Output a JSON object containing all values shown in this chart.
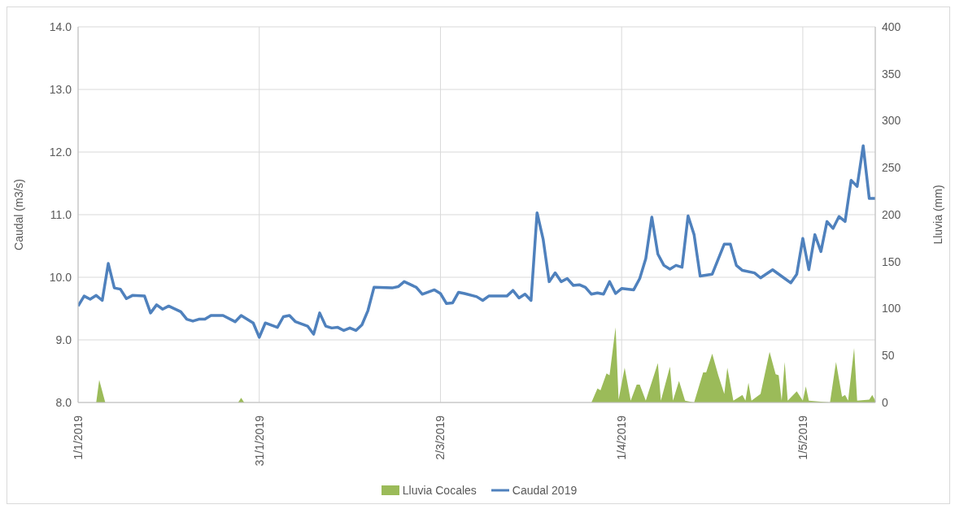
{
  "chart_data": {
    "type": "line",
    "ylabel": "Caudal (m3/s)",
    "y2label": "Lluvia (mm)",
    "xlim": [
      "2019-01-01",
      "2019-05-13"
    ],
    "xticks": [
      {
        "value": "2019-01-01",
        "label": "1/1/2019"
      },
      {
        "value": "2019-01-31",
        "label": "31/1/2019"
      },
      {
        "value": "2019-03-02",
        "label": "2/3/2019"
      },
      {
        "value": "2019-04-01",
        "label": "1/4/2019"
      },
      {
        "value": "2019-05-01",
        "label": "1/5/2019"
      }
    ],
    "ylim": [
      8,
      14
    ],
    "yticks": [
      {
        "value": 8,
        "label": "8.0"
      },
      {
        "value": 9,
        "label": "9.0"
      },
      {
        "value": 10,
        "label": "10.0"
      },
      {
        "value": 11,
        "label": "11.0"
      },
      {
        "value": 12,
        "label": "12.0"
      },
      {
        "value": 13,
        "label": "13.0"
      },
      {
        "value": 14,
        "label": "14.0"
      }
    ],
    "y2lim": [
      0,
      400
    ],
    "y2ticks": [
      0,
      50,
      100,
      150,
      200,
      250,
      300,
      350,
      400
    ],
    "grid": true,
    "legend": "bottom",
    "series": [
      {
        "name": "Lluvia Cocales",
        "type": "area",
        "axis": "y2",
        "color": "#9bbb59",
        "x": [
          "2019-01-01",
          "2019-01-04",
          "2019-01-04T12:00",
          "2019-01-05T12:00",
          "2019-01-27T12:00",
          "2019-01-28",
          "2019-01-28T12:00",
          "2019-03-27",
          "2019-03-28",
          "2019-03-28T12:00",
          "2019-03-29T12:00",
          "2019-03-30",
          "2019-03-31",
          "2019-03-31T12:00",
          "2019-04-01T12:00",
          "2019-04-02T12:00",
          "2019-04-03T12:00",
          "2019-04-04",
          "2019-04-05",
          "2019-04-07",
          "2019-04-07T12:00",
          "2019-04-09",
          "2019-04-09T12:00",
          "2019-04-10T12:00",
          "2019-04-11T12:00",
          "2019-04-13",
          "2019-04-14T12:00",
          "2019-04-15",
          "2019-04-16",
          "2019-04-17",
          "2019-04-18",
          "2019-04-18T12:00",
          "2019-04-19T12:00",
          "2019-04-21",
          "2019-04-21T12:00",
          "2019-04-22",
          "2019-04-22T12:00",
          "2019-04-24",
          "2019-04-25T12:00",
          "2019-04-26T12:00",
          "2019-04-27",
          "2019-04-27T12:00",
          "2019-04-28",
          "2019-04-28T12:00",
          "2019-04-30",
          "2019-05-01",
          "2019-05-01T12:00",
          "2019-05-02",
          "2019-05-05T12:00",
          "2019-05-06T12:00",
          "2019-05-07T12:00",
          "2019-05-08",
          "2019-05-08T12:00",
          "2019-05-09T12:00",
          "2019-05-10",
          "2019-05-12",
          "2019-05-12T12:00",
          "2019-05-13"
        ],
        "values": [
          0,
          0,
          24,
          0,
          0,
          5,
          0,
          0,
          15,
          13,
          31,
          29,
          80,
          3,
          37,
          2,
          19,
          19,
          2,
          42,
          2,
          38,
          2,
          23,
          2,
          0,
          32,
          32,
          52,
          29,
          9,
          37,
          2,
          8,
          2,
          21,
          2,
          9,
          54,
          30,
          29,
          2,
          43,
          2,
          12,
          2,
          17,
          2,
          0,
          43,
          6,
          8,
          2,
          58,
          2,
          3,
          8,
          2
        ]
      },
      {
        "name": "Caudal 2019",
        "axis": "y",
        "color": "#4f81bd",
        "x": [
          "2019-01-01",
          "2019-01-02",
          "2019-01-03",
          "2019-01-04",
          "2019-01-05",
          "2019-01-06",
          "2019-01-07",
          "2019-01-08",
          "2019-01-09",
          "2019-01-10",
          "2019-01-12",
          "2019-01-13",
          "2019-01-14",
          "2019-01-15",
          "2019-01-16",
          "2019-01-18",
          "2019-01-19",
          "2019-01-20",
          "2019-01-21",
          "2019-01-22",
          "2019-01-23",
          "2019-01-25",
          "2019-01-27",
          "2019-01-28",
          "2019-01-30",
          "2019-01-31",
          "2019-02-01",
          "2019-02-03",
          "2019-02-04",
          "2019-02-05",
          "2019-02-06",
          "2019-02-08",
          "2019-02-09",
          "2019-02-10",
          "2019-02-11",
          "2019-02-12",
          "2019-02-13",
          "2019-02-14",
          "2019-02-15",
          "2019-02-16",
          "2019-02-17",
          "2019-02-18",
          "2019-02-19",
          "2019-02-22",
          "2019-02-23",
          "2019-02-24",
          "2019-02-26",
          "2019-02-27",
          "2019-03-01",
          "2019-03-02",
          "2019-03-03",
          "2019-03-04",
          "2019-03-05",
          "2019-03-06",
          "2019-03-08",
          "2019-03-09",
          "2019-03-10",
          "2019-03-13",
          "2019-03-14",
          "2019-03-15",
          "2019-03-16",
          "2019-03-17",
          "2019-03-18",
          "2019-03-19",
          "2019-03-20",
          "2019-03-21",
          "2019-03-22",
          "2019-03-23",
          "2019-03-24",
          "2019-03-25",
          "2019-03-26",
          "2019-03-27",
          "2019-03-28",
          "2019-03-29",
          "2019-03-30",
          "2019-03-31",
          "2019-04-01",
          "2019-04-03",
          "2019-04-04",
          "2019-04-05",
          "2019-04-06",
          "2019-04-07",
          "2019-04-08",
          "2019-04-09",
          "2019-04-10",
          "2019-04-11",
          "2019-04-12",
          "2019-04-13",
          "2019-04-14",
          "2019-04-16",
          "2019-04-18",
          "2019-04-19",
          "2019-04-20",
          "2019-04-21",
          "2019-04-23",
          "2019-04-24",
          "2019-04-26",
          "2019-04-28",
          "2019-04-29",
          "2019-04-30",
          "2019-05-01",
          "2019-05-02",
          "2019-05-03",
          "2019-05-04",
          "2019-05-05",
          "2019-05-06",
          "2019-05-07",
          "2019-05-08",
          "2019-05-09",
          "2019-05-10",
          "2019-05-11",
          "2019-05-12",
          "2019-05-13"
        ],
        "values": [
          9.54,
          9.7,
          9.65,
          9.71,
          9.63,
          10.22,
          9.83,
          9.81,
          9.66,
          9.71,
          9.7,
          9.43,
          9.56,
          9.49,
          9.54,
          9.45,
          9.33,
          9.3,
          9.33,
          9.33,
          9.39,
          9.39,
          9.29,
          9.39,
          9.27,
          9.04,
          9.27,
          9.2,
          9.37,
          9.39,
          9.29,
          9.22,
          9.09,
          9.43,
          9.22,
          9.19,
          9.2,
          9.15,
          9.19,
          9.15,
          9.24,
          9.47,
          9.84,
          9.83,
          9.85,
          9.93,
          9.84,
          9.73,
          9.8,
          9.74,
          9.58,
          9.59,
          9.76,
          9.74,
          9.69,
          9.63,
          9.7,
          9.7,
          9.79,
          9.67,
          9.73,
          9.63,
          11.03,
          10.61,
          9.93,
          10.07,
          9.93,
          9.98,
          9.87,
          9.88,
          9.84,
          9.73,
          9.75,
          9.73,
          9.93,
          9.74,
          9.82,
          9.8,
          9.98,
          10.3,
          10.96,
          10.37,
          10.19,
          10.13,
          10.19,
          10.16,
          10.98,
          10.68,
          10.02,
          10.05,
          10.53,
          10.53,
          10.19,
          10.11,
          10.07,
          9.99,
          10.12,
          9.98,
          9.91,
          10.05,
          10.62,
          10.12,
          10.68,
          10.41,
          10.89,
          10.78,
          10.97,
          10.89,
          11.55,
          11.45,
          12.1,
          11.26,
          11.26
        ]
      }
    ]
  }
}
